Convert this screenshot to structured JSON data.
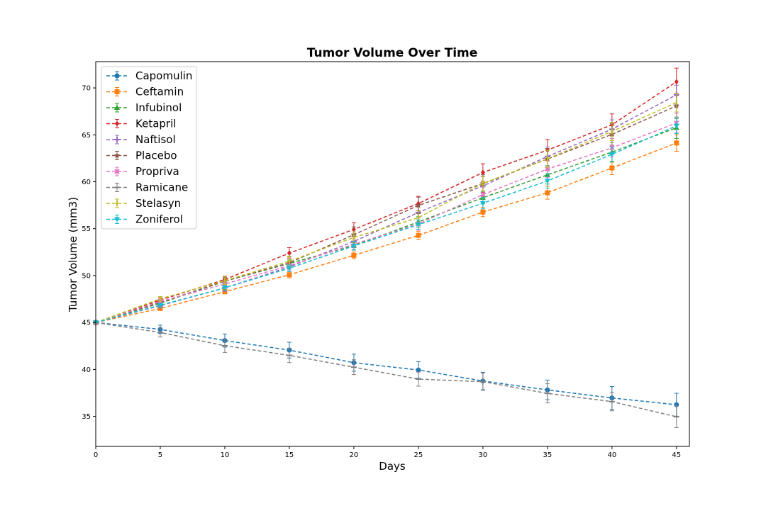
{
  "chart_data": {
    "type": "line",
    "title": "Tumor Volume Over Time",
    "xlabel": "Days",
    "ylabel": "Tumor Volume (mm3)",
    "xlim": [
      0,
      46
    ],
    "ylim": [
      31.8,
      72.8
    ],
    "xticks": [
      0,
      5,
      10,
      15,
      20,
      25,
      30,
      35,
      40,
      45
    ],
    "yticks": [
      35,
      40,
      45,
      50,
      55,
      60,
      65,
      70
    ],
    "grid": false,
    "legend_position": "top-left",
    "x": [
      0,
      5,
      10,
      15,
      20,
      25,
      30,
      35,
      40,
      45
    ],
    "series": [
      {
        "name": "Capomulin",
        "color": "#1f77b4",
        "marker": "circle",
        "values": [
          45.0,
          44.27,
          43.08,
          42.06,
          40.72,
          39.94,
          38.77,
          37.82,
          36.96,
          36.24
        ],
        "errors": [
          0.0,
          0.45,
          0.7,
          0.84,
          0.91,
          0.88,
          0.93,
          1.05,
          1.22,
          1.22
        ]
      },
      {
        "name": "Ceftamin",
        "color": "#ff7f0e",
        "marker": "square",
        "values": [
          45.0,
          46.5,
          48.29,
          50.09,
          52.16,
          54.29,
          56.77,
          58.83,
          61.47,
          64.13
        ],
        "errors": [
          0.0,
          0.16,
          0.24,
          0.33,
          0.36,
          0.44,
          0.49,
          0.69,
          0.71,
          0.88
        ]
      },
      {
        "name": "Infubinol",
        "color": "#2ca02c",
        "marker": "triangle-up",
        "values": [
          45.0,
          47.06,
          49.4,
          51.3,
          53.2,
          55.72,
          58.3,
          60.74,
          63.16,
          65.76
        ],
        "errors": [
          0.0,
          0.24,
          0.28,
          0.36,
          0.48,
          0.55,
          0.63,
          0.98,
          1.06,
          1.14
        ]
      },
      {
        "name": "Ketapril",
        "color": "#d62728",
        "marker": "diamond",
        "values": [
          45.0,
          47.39,
          49.58,
          52.4,
          54.92,
          57.68,
          60.99,
          63.37,
          66.07,
          70.66
        ],
        "errors": [
          0.0,
          0.26,
          0.36,
          0.58,
          0.73,
          0.76,
          0.93,
          1.13,
          1.16,
          1.45
        ]
      },
      {
        "name": "Naftisol",
        "color": "#9467bd",
        "marker": "plus",
        "values": [
          45.0,
          46.8,
          48.69,
          50.93,
          53.64,
          56.73,
          59.56,
          62.69,
          65.6,
          69.27
        ],
        "errors": [
          0.0,
          0.2,
          0.35,
          0.49,
          0.65,
          0.81,
          0.98,
          1.01,
          1.0,
          1.02
        ]
      },
      {
        "name": "Placebo",
        "color": "#8c564b",
        "marker": "star",
        "values": [
          45.0,
          47.13,
          49.42,
          51.36,
          54.36,
          57.48,
          59.81,
          62.42,
          65.05,
          68.08
        ],
        "errors": [
          0.0,
          0.22,
          0.4,
          0.61,
          0.84,
          0.88,
          0.94,
          1.13,
          1.16,
          1.35
        ]
      },
      {
        "name": "Propriva",
        "color": "#e377c2",
        "marker": "x",
        "values": [
          45.0,
          47.25,
          49.1,
          51.07,
          53.35,
          55.5,
          58.63,
          61.35,
          63.62,
          66.26
        ],
        "errors": [
          0.0,
          0.23,
          0.38,
          0.47,
          0.56,
          0.65,
          0.79,
          0.88,
          0.98,
          1.05
        ]
      },
      {
        "name": "Ramicane",
        "color": "#7f7f7f",
        "marker": "dash",
        "values": [
          45.0,
          43.94,
          42.53,
          41.5,
          40.24,
          38.97,
          38.7,
          37.45,
          36.57,
          34.96
        ],
        "errors": [
          0.0,
          0.48,
          0.72,
          0.77,
          0.79,
          0.75,
          0.92,
          1.02,
          0.98,
          1.15
        ]
      },
      {
        "name": "Stelasyn",
        "color": "#bcbd22",
        "marker": "pipe",
        "values": [
          45.0,
          47.53,
          49.46,
          51.53,
          54.07,
          56.17,
          59.83,
          62.44,
          65.36,
          68.44
        ],
        "errors": [
          0.0,
          0.24,
          0.43,
          0.52,
          0.58,
          0.73,
          0.76,
          0.9,
          0.98,
          1.0
        ]
      },
      {
        "name": "Zoniferol",
        "color": "#17becf",
        "marker": "triangle-down",
        "values": [
          45.0,
          46.85,
          48.69,
          50.78,
          53.17,
          55.43,
          57.71,
          60.09,
          62.92,
          65.96
        ],
        "errors": [
          0.0,
          0.19,
          0.26,
          0.36,
          0.44,
          0.51,
          0.6,
          0.77,
          0.78,
          0.81
        ]
      }
    ]
  }
}
